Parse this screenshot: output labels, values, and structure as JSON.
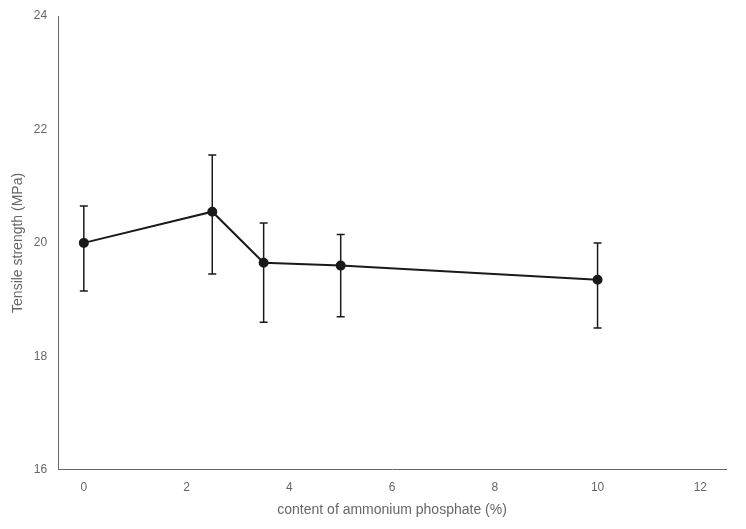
{
  "chart_data": {
    "type": "line",
    "x": [
      0,
      2.5,
      3.5,
      5,
      10
    ],
    "values": [
      20.0,
      20.55,
      19.65,
      19.6,
      19.35
    ],
    "error_lower": [
      0.85,
      1.1,
      1.05,
      0.9,
      0.85
    ],
    "error_upper": [
      0.65,
      1.0,
      0.7,
      0.55,
      0.65
    ],
    "xlabel": "content of ammonium phosphate (%)",
    "ylabel": "Tensile strength (MPa)",
    "xlim": [
      -0.5,
      12.5
    ],
    "ylim": [
      16,
      24
    ],
    "xticks": [
      0,
      2,
      4,
      6,
      8,
      10,
      12
    ],
    "yticks": [
      16,
      18,
      20,
      22,
      24
    ],
    "color": "#1a1a1a",
    "marker": "circle",
    "grid": false
  }
}
